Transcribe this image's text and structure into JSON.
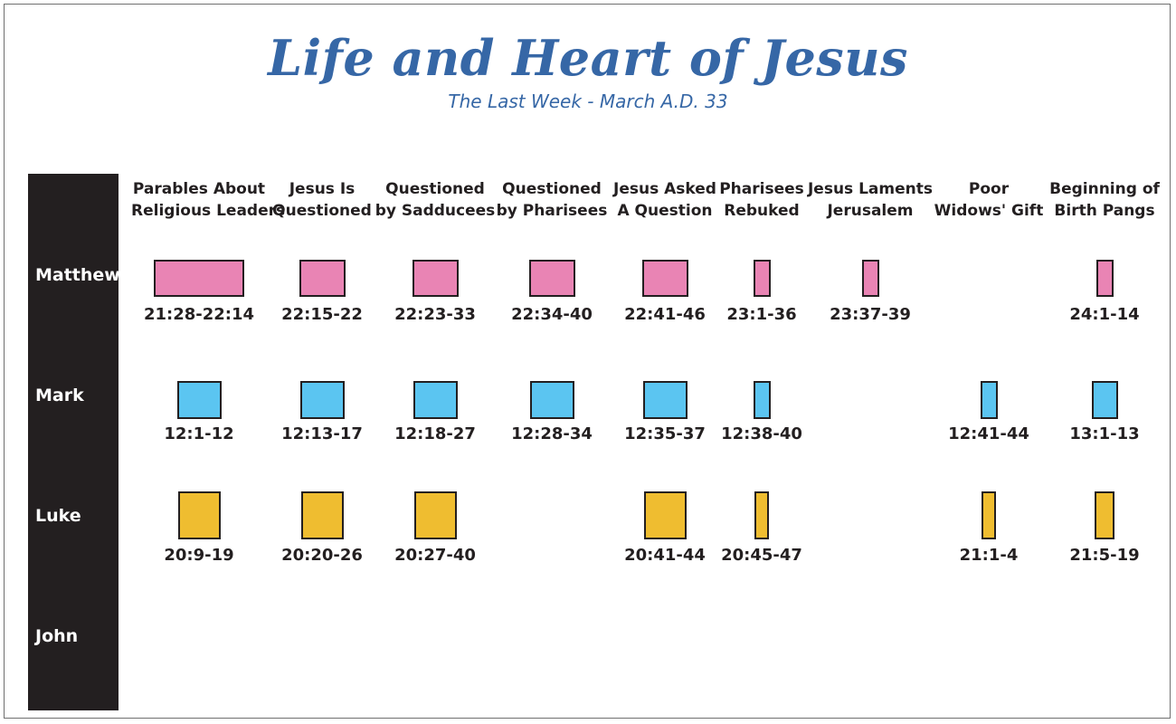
{
  "title": "Life and Heart of Jesus",
  "subtitle": "The Last Week - March A.D. 33",
  "gospels": [
    "Matthew",
    "Mark",
    "Luke",
    "John"
  ],
  "colors": {
    "Matthew": "#e984b4",
    "Mark": "#5bc5f1",
    "Luke": "#efbd30",
    "title": "#3667a6",
    "bar": "#231f20"
  },
  "columns": [
    {
      "id": "parables",
      "header": [
        "Parables About",
        "Religious Leaders"
      ]
    },
    {
      "id": "jesus-questioned",
      "header": [
        "Jesus Is",
        "Questioned"
      ]
    },
    {
      "id": "sadducees",
      "header": [
        "Questioned",
        "by Sadducees"
      ]
    },
    {
      "id": "pharisees-questioned",
      "header": [
        "Questioned",
        "by Pharisees"
      ]
    },
    {
      "id": "jesus-asked",
      "header": [
        "Jesus Asked",
        "A Question"
      ]
    },
    {
      "id": "pharisees-rebuked",
      "header": [
        "Pharisees",
        "Rebuked"
      ]
    },
    {
      "id": "laments",
      "header": [
        "Jesus Laments",
        "Jerusalem"
      ]
    },
    {
      "id": "widows-gift",
      "header": [
        "Poor",
        "Widows' Gift"
      ]
    },
    {
      "id": "birth-pangs",
      "header": [
        "Beginning of",
        "Birth Pangs"
      ]
    }
  ],
  "passages": {
    "Matthew": [
      "21:28-22:14",
      "22:15-22",
      "22:23-33",
      "22:34-40",
      "22:41-46",
      "23:1-36",
      "23:37-39",
      null,
      "24:1-14"
    ],
    "Mark": [
      "12:1-12",
      "12:13-17",
      "12:18-27",
      "12:28-34",
      "12:35-37",
      "12:38-40",
      null,
      "12:41-44",
      "13:1-13"
    ],
    "Luke": [
      "20:9-19",
      "20:20-26",
      "20:27-40",
      null,
      "20:41-44",
      "20:45-47",
      null,
      "21:1-4",
      "21:5-19"
    ],
    "John": [
      null,
      null,
      null,
      null,
      null,
      null,
      null,
      null,
      null
    ]
  }
}
